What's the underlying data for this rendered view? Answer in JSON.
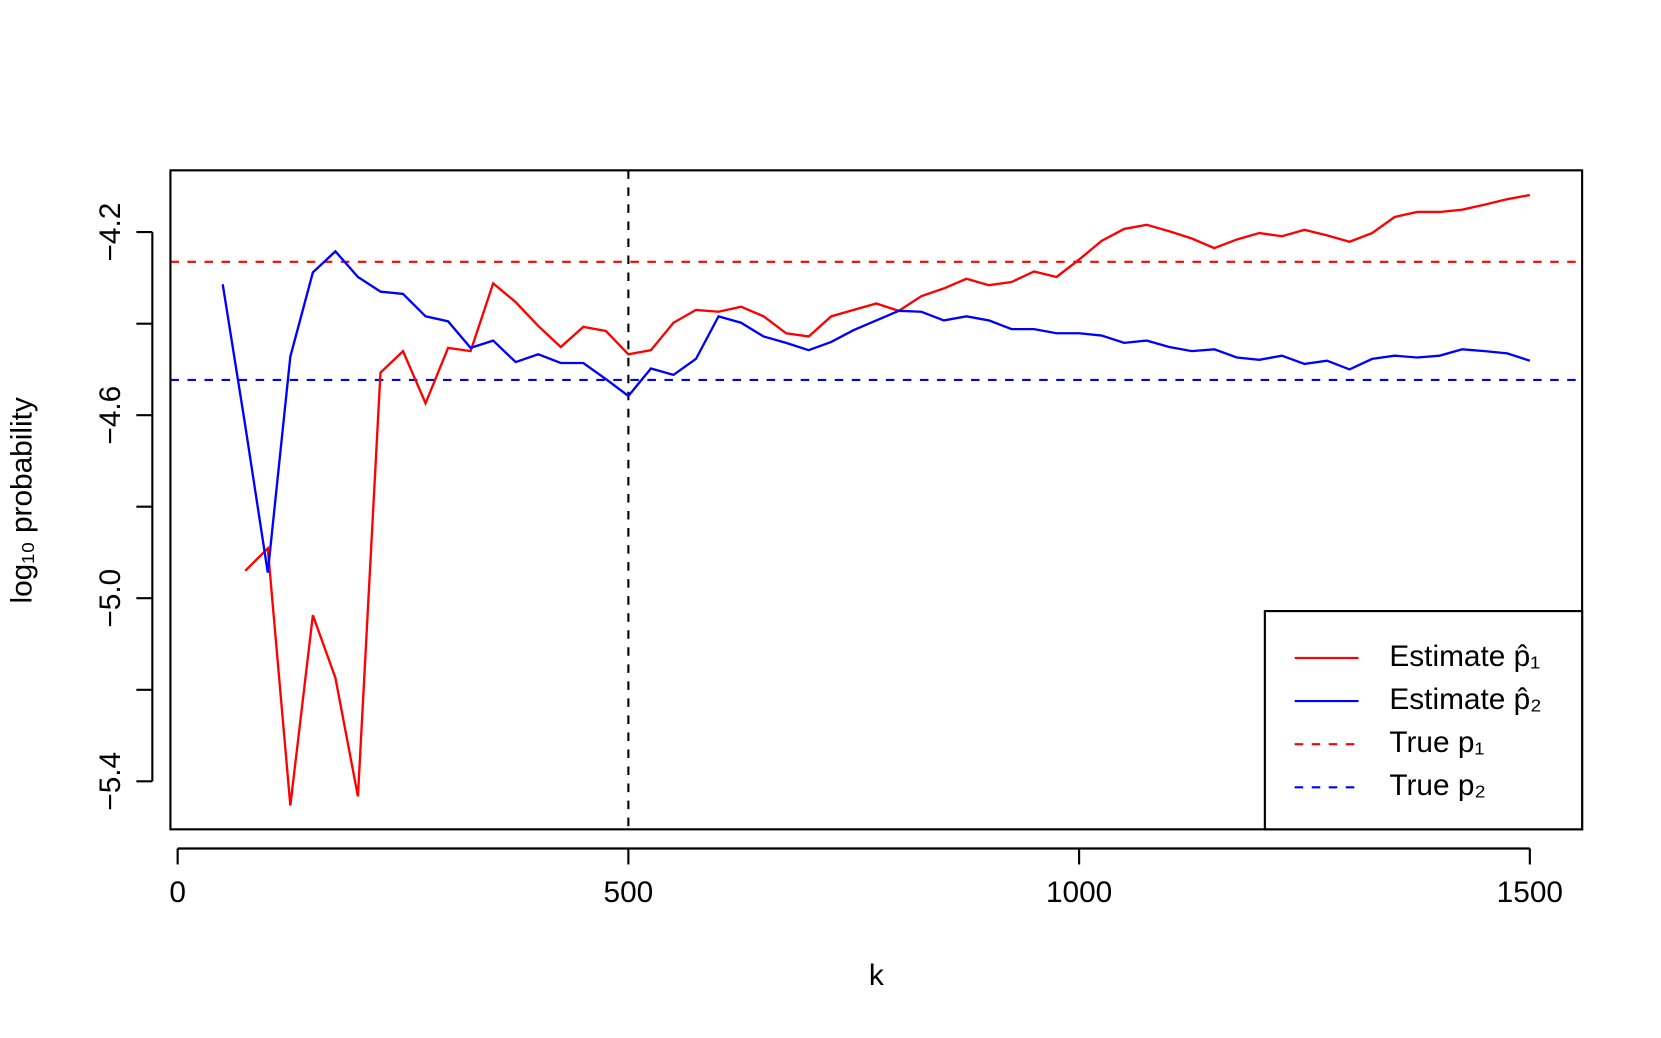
{
  "chart_data": {
    "type": "line",
    "x_label": "k",
    "y_label": "log₁₀ probability",
    "x": [
      50,
      75,
      100,
      125,
      150,
      175,
      200,
      225,
      250,
      275,
      300,
      325,
      350,
      375,
      400,
      425,
      450,
      475,
      500,
      525,
      550,
      575,
      600,
      625,
      650,
      675,
      700,
      725,
      750,
      775,
      800,
      825,
      850,
      875,
      900,
      925,
      950,
      975,
      1000,
      1025,
      1050,
      1075,
      1100,
      1125,
      1150,
      1175,
      1200,
      1225,
      1250,
      1275,
      1300,
      1325,
      1350,
      1375,
      1400,
      1425,
      1450,
      1475,
      1500
    ],
    "series": [
      {
        "name": "Estimate p̂₁",
        "color": "#ff0000",
        "values": [
          null,
          -4.94,
          -4.891,
          -5.453,
          -5.037,
          -5.174,
          -5.433,
          -4.507,
          -4.46,
          -4.574,
          -4.453,
          -4.46,
          -4.312,
          -4.353,
          -4.405,
          -4.451,
          -4.407,
          -4.416,
          -4.467,
          -4.458,
          -4.398,
          -4.37,
          -4.374,
          -4.363,
          -4.384,
          -4.421,
          -4.428,
          -4.384,
          -4.37,
          -4.356,
          -4.372,
          -4.34,
          -4.323,
          -4.302,
          -4.316,
          -4.309,
          -4.286,
          -4.298,
          -4.26,
          -4.219,
          -4.193,
          -4.184,
          -4.198,
          -4.214,
          -4.235,
          -4.216,
          -4.202,
          -4.209,
          -4.195,
          -4.207,
          -4.221,
          -4.202,
          -4.167,
          -4.156,
          -4.156,
          -4.151,
          -4.14,
          -4.128,
          -4.119
        ]
      },
      {
        "name": "Estimate p̂₂",
        "color": "#0000ff",
        "values": [
          -4.314,
          -4.623,
          -4.944,
          -4.472,
          -4.288,
          -4.242,
          -4.298,
          -4.33,
          -4.335,
          -4.384,
          -4.395,
          -4.453,
          -4.437,
          -4.484,
          -4.467,
          -4.486,
          -4.486,
          -4.521,
          -4.558,
          -4.498,
          -4.512,
          -4.477,
          -4.384,
          -4.398,
          -4.428,
          -4.442,
          -4.458,
          -4.44,
          -4.414,
          -4.393,
          -4.372,
          -4.374,
          -4.393,
          -4.384,
          -4.393,
          -4.412,
          -4.412,
          -4.421,
          -4.421,
          -4.426,
          -4.442,
          -4.437,
          -4.451,
          -4.46,
          -4.456,
          -4.474,
          -4.479,
          -4.47,
          -4.488,
          -4.481,
          -4.5,
          -4.477,
          -4.47,
          -4.474,
          -4.47,
          -4.456,
          -4.46,
          -4.465,
          -4.481
        ]
      }
    ],
    "reference_lines": [
      {
        "name": "True p₁",
        "color": "#ff0000",
        "value": -4.265
      },
      {
        "name": "True p₂",
        "color": "#0000ff",
        "value": -4.523
      }
    ],
    "vertical_line": {
      "x": 500,
      "color": "#000000"
    },
    "xlim": [
      -8,
      1558
    ],
    "xticks": [
      0,
      500,
      1000,
      1500
    ],
    "ylim": [
      -5.505,
      -4.065
    ],
    "yticks": [
      {
        "value": -5.4,
        "label": "−5.4"
      },
      {
        "value": -5.2,
        "label": null
      },
      {
        "value": -5.0,
        "label": "−5.0"
      },
      {
        "value": -4.8,
        "label": null
      },
      {
        "value": -4.6,
        "label": "−4.6"
      },
      {
        "value": -4.4,
        "label": null
      },
      {
        "value": -4.2,
        "label": "−4.2"
      }
    ],
    "legend": "bottom-right"
  }
}
